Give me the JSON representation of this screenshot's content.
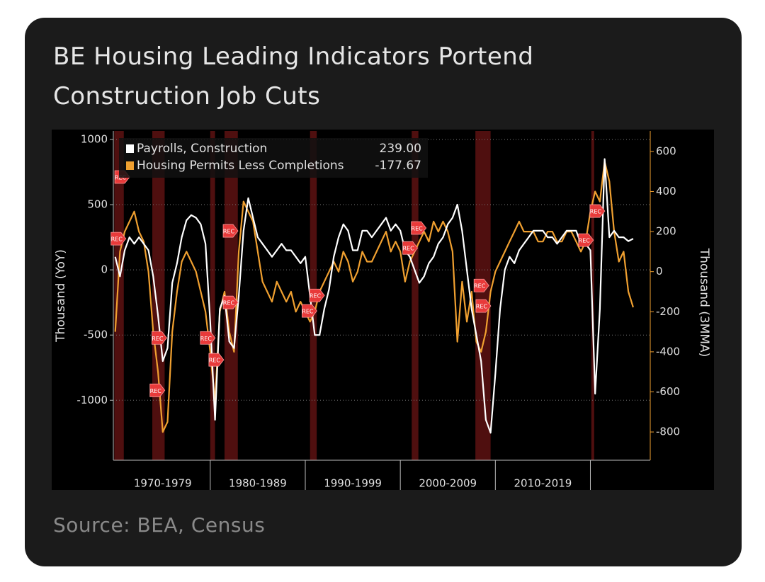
{
  "chart_data": {
    "type": "line",
    "title": "BE Housing Leading Indicators Portend Construction Job Cuts",
    "source": "Source: BEA, Census",
    "ylabel": "Thousand (YoY)",
    "y2label": "Thousand (3MMA)",
    "xlim": [
      1969.8,
      2026.3
    ],
    "ylim": [
      -1460,
      1065
    ],
    "y2lim": [
      -941,
      702
    ],
    "yticks": [
      -1000,
      -500,
      0,
      500,
      1000
    ],
    "y2ticks": [
      -800,
      -600,
      -400,
      -200,
      0,
      200,
      400,
      600
    ],
    "xticks": [
      1980,
      1990,
      2000,
      2010,
      2020
    ],
    "decade_labels": [
      {
        "value": 1975,
        "label": "1970-1979"
      },
      {
        "value": 1985,
        "label": "1980-1989"
      },
      {
        "value": 1995,
        "label": "1990-1999"
      },
      {
        "value": 2005,
        "label": "2000-2009"
      },
      {
        "value": 2015,
        "label": "2010-2019"
      }
    ],
    "grid": true,
    "legend": "top-left",
    "recessions": [
      [
        1969.9,
        1970.9
      ],
      [
        1973.9,
        1975.2
      ],
      [
        1980.0,
        1980.5
      ],
      [
        1981.5,
        1982.9
      ],
      [
        1990.5,
        1991.2
      ],
      [
        2001.2,
        2001.9
      ],
      [
        2007.9,
        2009.5
      ],
      [
        2020.1,
        2020.4
      ]
    ],
    "annotations": [
      {
        "label": "REC",
        "x": 1970.7,
        "y": 712
      },
      {
        "label": "REC",
        "x": 1970.3,
        "y": 239
      },
      {
        "label": "REC",
        "x": 1974.6,
        "y": -522
      },
      {
        "label": "REC",
        "x": 1974.4,
        "y": -924
      },
      {
        "label": "REC",
        "x": 1979.7,
        "y": -522
      },
      {
        "label": "REC",
        "x": 1980.6,
        "y": -690
      },
      {
        "label": "REC",
        "x": 1982.1,
        "y": 299
      },
      {
        "label": "REC",
        "x": 1982.1,
        "y": -250
      },
      {
        "label": "REC",
        "x": 1991.2,
        "y": -196
      },
      {
        "label": "REC",
        "x": 1990.4,
        "y": -315
      },
      {
        "label": "REC",
        "x": 2001.9,
        "y": 321
      },
      {
        "label": "REC",
        "x": 2001.0,
        "y": 168
      },
      {
        "label": "REC",
        "x": 2008.5,
        "y": -120
      },
      {
        "label": "REC",
        "x": 2008.7,
        "y": -277
      },
      {
        "label": "REC",
        "x": 2020.7,
        "y": 451
      },
      {
        "label": "REC",
        "x": 2019.5,
        "y": 228
      }
    ],
    "x": [
      1970.0,
      1970.5,
      1971.0,
      1971.5,
      1972.0,
      1972.5,
      1973.0,
      1973.5,
      1974.0,
      1974.5,
      1975.0,
      1975.5,
      1976.0,
      1976.5,
      1977.0,
      1977.5,
      1978.0,
      1978.5,
      1979.0,
      1979.5,
      1980.0,
      1980.5,
      1981.0,
      1981.5,
      1982.0,
      1982.5,
      1983.0,
      1983.5,
      1984.0,
      1984.5,
      1985.0,
      1985.5,
      1986.0,
      1986.5,
      1987.0,
      1987.5,
      1988.0,
      1988.5,
      1989.0,
      1989.5,
      1990.0,
      1990.5,
      1991.0,
      1991.5,
      1992.0,
      1992.5,
      1993.0,
      1993.5,
      1994.0,
      1994.5,
      1995.0,
      1995.5,
      1996.0,
      1996.5,
      1997.0,
      1997.5,
      1998.0,
      1998.5,
      1999.0,
      1999.5,
      2000.0,
      2000.5,
      2001.0,
      2001.5,
      2002.0,
      2002.5,
      2003.0,
      2003.5,
      2004.0,
      2004.5,
      2005.0,
      2005.5,
      2006.0,
      2006.5,
      2007.0,
      2007.5,
      2008.0,
      2008.5,
      2009.0,
      2009.5,
      2010.0,
      2010.5,
      2011.0,
      2011.5,
      2012.0,
      2012.5,
      2013.0,
      2013.5,
      2014.0,
      2014.5,
      2015.0,
      2015.5,
      2016.0,
      2016.5,
      2017.0,
      2017.5,
      2018.0,
      2018.5,
      2019.0,
      2019.5,
      2020.0,
      2020.5,
      2021.0,
      2021.5,
      2022.0,
      2022.5,
      2023.0,
      2023.5,
      2024.0,
      2024.5
    ],
    "series": [
      {
        "name": "Payrolls, Construction",
        "color": "#ffffff",
        "last_value": {
          "value": 239,
          "label": "239.00"
        },
        "values": [
          100,
          -50,
          150,
          250,
          200,
          250,
          200,
          150,
          -50,
          -350,
          -700,
          -600,
          -100,
          50,
          250,
          380,
          420,
          400,
          350,
          200,
          -400,
          -1150,
          -300,
          -200,
          -550,
          -600,
          -200,
          300,
          550,
          400,
          250,
          200,
          150,
          100,
          150,
          200,
          150,
          150,
          100,
          50,
          100,
          -200,
          -500,
          -500,
          -300,
          -150,
          100,
          250,
          350,
          300,
          150,
          150,
          300,
          300,
          250,
          300,
          350,
          400,
          300,
          350,
          300,
          150,
          100,
          0,
          -100,
          -50,
          50,
          100,
          200,
          250,
          350,
          400,
          500,
          300,
          0,
          -300,
          -500,
          -700,
          -1150,
          -1250,
          -800,
          -300,
          0,
          100,
          50,
          150,
          200,
          250,
          300,
          300,
          300,
          250,
          250,
          200,
          250,
          300,
          300,
          300,
          200,
          200,
          150,
          -950,
          -300,
          850,
          250,
          300,
          250,
          250,
          220,
          239
        ]
      },
      {
        "name": "Housing Permits Less Completions",
        "color": "#f0a030",
        "axis": "y2",
        "last_value": {
          "value": -177.67,
          "label": "-177.67"
        },
        "values": [
          -300,
          100,
          200,
          250,
          300,
          200,
          150,
          0,
          -300,
          -500,
          -800,
          -750,
          -300,
          -100,
          50,
          100,
          50,
          0,
          -100,
          -200,
          -400,
          -650,
          -200,
          -100,
          -300,
          -400,
          100,
          350,
          300,
          250,
          100,
          -50,
          -100,
          -150,
          -50,
          -100,
          -150,
          -100,
          -200,
          -150,
          -200,
          -250,
          -200,
          -100,
          -50,
          0,
          50,
          0,
          100,
          50,
          -50,
          0,
          100,
          50,
          50,
          100,
          150,
          200,
          100,
          150,
          100,
          -50,
          50,
          100,
          150,
          200,
          150,
          250,
          200,
          250,
          200,
          100,
          -350,
          -50,
          -250,
          -100,
          -350,
          -400,
          -300,
          -100,
          0,
          50,
          100,
          150,
          200,
          250,
          200,
          200,
          200,
          150,
          150,
          200,
          200,
          150,
          150,
          200,
          200,
          150,
          100,
          150,
          300,
          400,
          350,
          550,
          450,
          200,
          50,
          100,
          -100,
          -177.67
        ]
      }
    ]
  }
}
